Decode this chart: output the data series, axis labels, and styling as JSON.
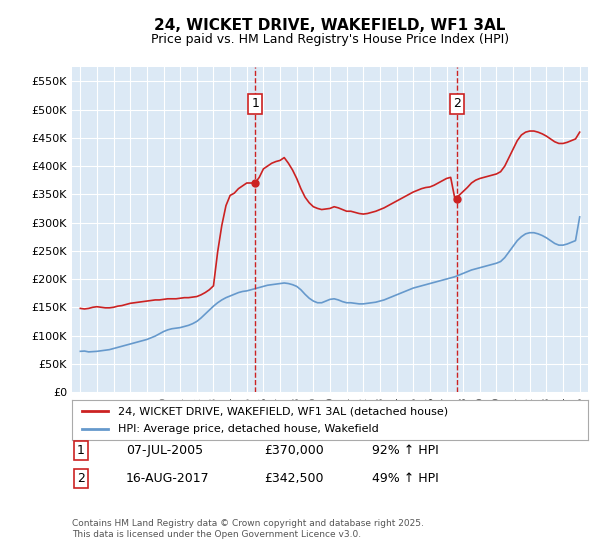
{
  "title": "24, WICKET DRIVE, WAKEFIELD, WF1 3AL",
  "subtitle": "Price paid vs. HM Land Registry's House Price Index (HPI)",
  "ylim": [
    0,
    575000
  ],
  "yticks": [
    0,
    50000,
    100000,
    150000,
    200000,
    250000,
    300000,
    350000,
    400000,
    450000,
    500000,
    550000
  ],
  "ytick_labels": [
    "£0",
    "£50K",
    "£100K",
    "£150K",
    "£200K",
    "£250K",
    "£300K",
    "£350K",
    "£400K",
    "£450K",
    "£500K",
    "£550K"
  ],
  "xlim_start": 1994.5,
  "xlim_end": 2025.5,
  "xticks": [
    1995,
    1996,
    1997,
    1998,
    1999,
    2000,
    2001,
    2002,
    2003,
    2004,
    2005,
    2006,
    2007,
    2008,
    2009,
    2010,
    2011,
    2012,
    2013,
    2014,
    2015,
    2016,
    2017,
    2018,
    2019,
    2020,
    2021,
    2022,
    2023,
    2024,
    2025
  ],
  "hpi_color": "#6699cc",
  "price_color": "#cc2222",
  "marker_color": "#cc2222",
  "annotation_box_color": "#cc2222",
  "background_color": "#dce9f5",
  "plot_bg_color": "#dce9f5",
  "legend_label_price": "24, WICKET DRIVE, WAKEFIELD, WF1 3AL (detached house)",
  "legend_label_hpi": "HPI: Average price, detached house, Wakefield",
  "event1_x": 2005.52,
  "event1_y": 370000,
  "event1_label": "1",
  "event2_x": 2017.62,
  "event2_y": 342500,
  "event2_label": "2",
  "footer_line1": "Contains HM Land Registry data © Crown copyright and database right 2025.",
  "footer_line2": "This data is licensed under the Open Government Licence v3.0.",
  "table_row1": [
    "1",
    "07-JUL-2005",
    "£370,000",
    "92% ↑ HPI"
  ],
  "table_row2": [
    "2",
    "16-AUG-2017",
    "£342,500",
    "49% ↑ HPI"
  ],
  "hpi_data_x": [
    1995.0,
    1995.25,
    1995.5,
    1995.75,
    1996.0,
    1996.25,
    1996.5,
    1996.75,
    1997.0,
    1997.25,
    1997.5,
    1997.75,
    1998.0,
    1998.25,
    1998.5,
    1998.75,
    1999.0,
    1999.25,
    1999.5,
    1999.75,
    2000.0,
    2000.25,
    2000.5,
    2000.75,
    2001.0,
    2001.25,
    2001.5,
    2001.75,
    2002.0,
    2002.25,
    2002.5,
    2002.75,
    2003.0,
    2003.25,
    2003.5,
    2003.75,
    2004.0,
    2004.25,
    2004.5,
    2004.75,
    2005.0,
    2005.25,
    2005.5,
    2005.75,
    2006.0,
    2006.25,
    2006.5,
    2006.75,
    2007.0,
    2007.25,
    2007.5,
    2007.75,
    2008.0,
    2008.25,
    2008.5,
    2008.75,
    2009.0,
    2009.25,
    2009.5,
    2009.75,
    2010.0,
    2010.25,
    2010.5,
    2010.75,
    2011.0,
    2011.25,
    2011.5,
    2011.75,
    2012.0,
    2012.25,
    2012.5,
    2012.75,
    2013.0,
    2013.25,
    2013.5,
    2013.75,
    2014.0,
    2014.25,
    2014.5,
    2014.75,
    2015.0,
    2015.25,
    2015.5,
    2015.75,
    2016.0,
    2016.25,
    2016.5,
    2016.75,
    2017.0,
    2017.25,
    2017.5,
    2017.75,
    2018.0,
    2018.25,
    2018.5,
    2018.75,
    2019.0,
    2019.25,
    2019.5,
    2019.75,
    2020.0,
    2020.25,
    2020.5,
    2020.75,
    2021.0,
    2021.25,
    2021.5,
    2021.75,
    2022.0,
    2022.25,
    2022.5,
    2022.75,
    2023.0,
    2023.25,
    2023.5,
    2023.75,
    2024.0,
    2024.25,
    2024.5,
    2024.75,
    2025.0
  ],
  "hpi_data_y": [
    72000,
    72500,
    71000,
    71500,
    72000,
    73000,
    74000,
    75000,
    77000,
    79000,
    81000,
    83000,
    85000,
    87000,
    89000,
    91000,
    93000,
    96000,
    99000,
    103000,
    107000,
    110000,
    112000,
    113000,
    114000,
    116000,
    118000,
    121000,
    125000,
    131000,
    138000,
    145000,
    152000,
    158000,
    163000,
    167000,
    170000,
    173000,
    176000,
    178000,
    179000,
    181000,
    183000,
    185000,
    187000,
    189000,
    190000,
    191000,
    192000,
    193000,
    192000,
    190000,
    187000,
    181000,
    173000,
    166000,
    161000,
    158000,
    158000,
    161000,
    164000,
    165000,
    163000,
    160000,
    158000,
    158000,
    157000,
    156000,
    156000,
    157000,
    158000,
    159000,
    161000,
    163000,
    166000,
    169000,
    172000,
    175000,
    178000,
    181000,
    184000,
    186000,
    188000,
    190000,
    192000,
    194000,
    196000,
    198000,
    200000,
    202000,
    204000,
    207000,
    210000,
    213000,
    216000,
    218000,
    220000,
    222000,
    224000,
    226000,
    228000,
    231000,
    238000,
    248000,
    258000,
    268000,
    275000,
    280000,
    282000,
    282000,
    280000,
    277000,
    273000,
    268000,
    263000,
    260000,
    260000,
    262000,
    265000,
    268000,
    310000
  ],
  "price_data_x": [
    1995.0,
    1995.25,
    1995.5,
    1995.75,
    1996.0,
    1996.25,
    1996.5,
    1996.75,
    1997.0,
    1997.25,
    1997.5,
    1997.75,
    1998.0,
    1998.25,
    1998.5,
    1998.75,
    1999.0,
    1999.25,
    1999.5,
    1999.75,
    2000.0,
    2000.25,
    2000.5,
    2000.75,
    2001.0,
    2001.25,
    2001.5,
    2001.75,
    2002.0,
    2002.25,
    2002.5,
    2002.75,
    2003.0,
    2003.25,
    2003.5,
    2003.75,
    2004.0,
    2004.25,
    2004.5,
    2004.75,
    2005.0,
    2005.25,
    2005.5,
    2005.75,
    2006.0,
    2006.25,
    2006.5,
    2006.75,
    2007.0,
    2007.25,
    2007.5,
    2007.75,
    2008.0,
    2008.25,
    2008.5,
    2008.75,
    2009.0,
    2009.25,
    2009.5,
    2009.75,
    2010.0,
    2010.25,
    2010.5,
    2010.75,
    2011.0,
    2011.25,
    2011.5,
    2011.75,
    2012.0,
    2012.25,
    2012.5,
    2012.75,
    2013.0,
    2013.25,
    2013.5,
    2013.75,
    2014.0,
    2014.25,
    2014.5,
    2014.75,
    2015.0,
    2015.25,
    2015.5,
    2015.75,
    2016.0,
    2016.25,
    2016.5,
    2016.75,
    2017.0,
    2017.25,
    2017.5,
    2017.75,
    2018.0,
    2018.25,
    2018.5,
    2018.75,
    2019.0,
    2019.25,
    2019.5,
    2019.75,
    2020.0,
    2020.25,
    2020.5,
    2020.75,
    2021.0,
    2021.25,
    2021.5,
    2021.75,
    2022.0,
    2022.25,
    2022.5,
    2022.75,
    2023.0,
    2023.25,
    2023.5,
    2023.75,
    2024.0,
    2024.25,
    2024.5,
    2024.75,
    2025.0
  ],
  "price_data_y": [
    148000,
    147000,
    148000,
    150000,
    151000,
    150000,
    149000,
    149000,
    150000,
    152000,
    153000,
    155000,
    157000,
    158000,
    159000,
    160000,
    161000,
    162000,
    163000,
    163000,
    164000,
    165000,
    165000,
    165000,
    166000,
    167000,
    167000,
    168000,
    169000,
    172000,
    176000,
    181000,
    188000,
    248000,
    295000,
    330000,
    348000,
    352000,
    360000,
    365000,
    370000,
    370000,
    370000,
    380000,
    395000,
    400000,
    405000,
    408000,
    410000,
    415000,
    405000,
    393000,
    378000,
    360000,
    345000,
    335000,
    328000,
    325000,
    323000,
    324000,
    325000,
    328000,
    326000,
    323000,
    320000,
    320000,
    318000,
    316000,
    315000,
    316000,
    318000,
    320000,
    323000,
    326000,
    330000,
    334000,
    338000,
    342000,
    346000,
    350000,
    354000,
    357000,
    360000,
    362000,
    363000,
    366000,
    370000,
    374000,
    378000,
    380000,
    342500,
    348000,
    355000,
    362000,
    370000,
    375000,
    378000,
    380000,
    382000,
    384000,
    386000,
    390000,
    400000,
    415000,
    430000,
    445000,
    455000,
    460000,
    462000,
    462000,
    460000,
    457000,
    453000,
    448000,
    443000,
    440000,
    440000,
    442000,
    445000,
    448000,
    460000
  ]
}
